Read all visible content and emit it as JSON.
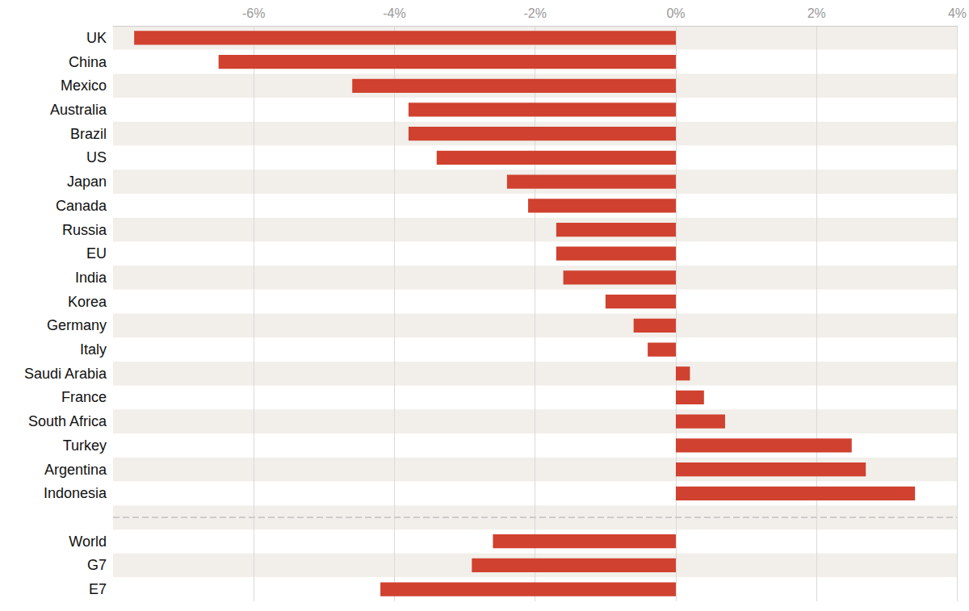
{
  "chart_data": {
    "type": "bar",
    "orientation": "horizontal",
    "categories": [
      "UK",
      "China",
      "Mexico",
      "Australia",
      "Brazil",
      "US",
      "Japan",
      "Canada",
      "Russia",
      "EU",
      "India",
      "Korea",
      "Germany",
      "Italy",
      "Saudi Arabia",
      "France",
      "South Africa",
      "Turkey",
      "Argentina",
      "Indonesia",
      null,
      "World",
      "G7",
      "E7"
    ],
    "values": [
      -7.7,
      -6.5,
      -4.6,
      -3.8,
      -3.8,
      -3.4,
      -2.4,
      -2.1,
      -1.7,
      -1.7,
      -1.6,
      -1.0,
      -0.6,
      -0.4,
      0.2,
      0.4,
      0.7,
      2.5,
      2.7,
      3.4,
      null,
      -2.6,
      -2.9,
      -4.2
    ],
    "color": "#d0412f",
    "xlim": [
      -8,
      4
    ],
    "xticks": [
      {
        "value": -6,
        "label": "-6%"
      },
      {
        "value": -4,
        "label": "-4%"
      },
      {
        "value": -2,
        "label": "-2%"
      },
      {
        "value": 0,
        "label": "0%"
      },
      {
        "value": 2,
        "label": "2%"
      },
      {
        "value": 4,
        "label": "4%"
      }
    ],
    "grid": true
  }
}
